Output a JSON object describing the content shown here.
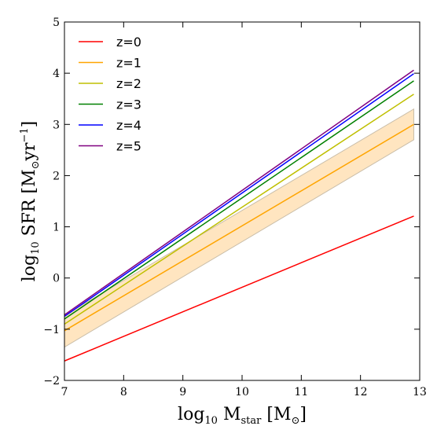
{
  "chart_data": {
    "type": "line",
    "xlim": [
      7,
      13
    ],
    "ylim": [
      -2,
      5
    ],
    "xticks": [
      "7",
      "8",
      "9",
      "10",
      "11",
      "12",
      "13"
    ],
    "yticks": [
      "−2",
      "−1",
      "0",
      "1",
      "2",
      "3",
      "4",
      "5"
    ],
    "xlabel": {
      "prefix": "log",
      "sub": "10",
      "main": "M",
      "main_sub": "star",
      "units": "[M",
      "units_sub": "⊙",
      "close": "]"
    },
    "ylabel": {
      "prefix": "log",
      "sub": "10",
      "main": "SFR",
      "units": "[M",
      "units_sub": "⊙",
      "yr": "yr",
      "sup": "−1",
      "close": "]"
    },
    "grid": false,
    "legend_position": "top-left",
    "x": [
      7.0,
      12.9
    ],
    "series": [
      {
        "name": "z=0",
        "color": "#ff0000",
        "values": [
          -1.62,
          1.21
        ]
      },
      {
        "name": "z=1",
        "color": "#ffa500",
        "values": [
          -1.03,
          3.0
        ],
        "band_lower": [
          -1.35,
          2.7
        ],
        "band_upper": [
          -0.73,
          3.3
        ]
      },
      {
        "name": "z=2",
        "color": "#bfbf00",
        "values": [
          -0.9,
          3.59
        ]
      },
      {
        "name": "z=3",
        "color": "#008000",
        "values": [
          -0.8,
          3.85
        ]
      },
      {
        "name": "z=4",
        "color": "#0000ff",
        "values": [
          -0.75,
          3.99
        ]
      },
      {
        "name": "z=5",
        "color": "#800080",
        "values": [
          -0.72,
          4.06
        ]
      }
    ],
    "band_fill": "#ffe5c0",
    "band_edge": "#c9bda8"
  }
}
